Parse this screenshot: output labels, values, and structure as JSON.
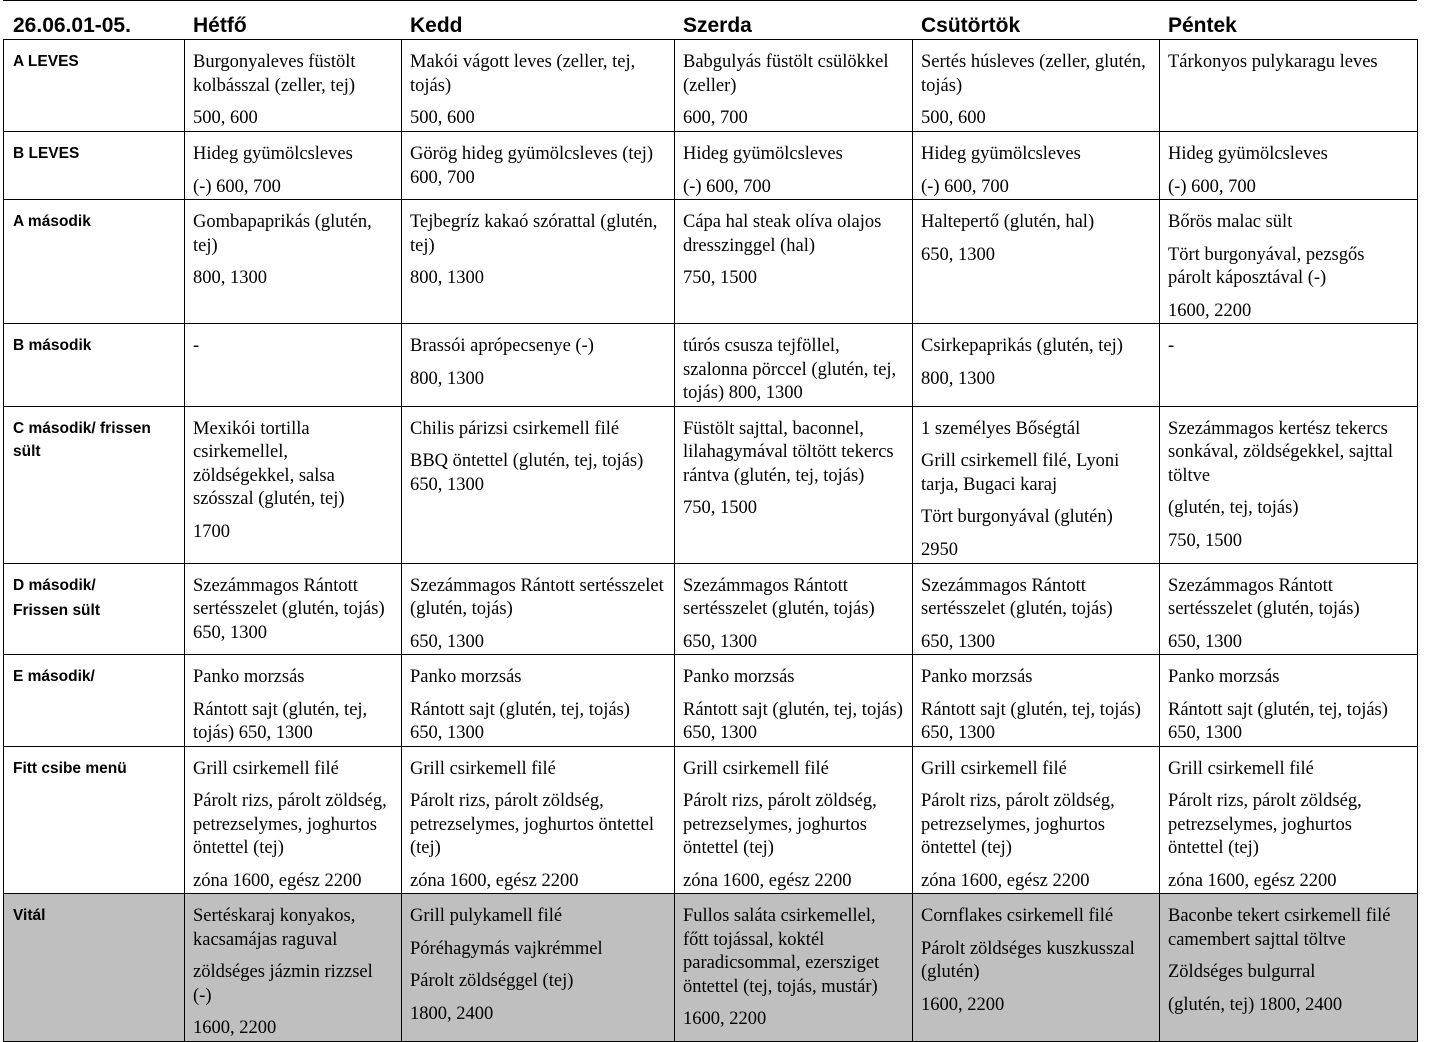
{
  "header": {
    "date": "26.06.01-05.",
    "days": [
      "Hétfő",
      "Kedd",
      "Szerda",
      "Csütörtök",
      "Péntek"
    ]
  },
  "rows": [
    {
      "label": [
        "A LEVES"
      ],
      "cells": [
        [
          "Burgonyaleves füstölt kolbásszal (zeller, tej)",
          "500, 600"
        ],
        [
          "Makói vágott leves (zeller, tej, tojás)",
          " 500, 600"
        ],
        [
          "Babgulyás füstölt csülökkel (zeller)",
          "600, 700"
        ],
        [
          "Sertés húsleves (zeller, glutén, tojás)",
          "500, 600"
        ],
        [
          "Tárkonyos pulykaragu leves"
        ]
      ]
    },
    {
      "label": [
        "B LEVES"
      ],
      "cells": [
        [
          "Hideg gyümölcsleves",
          "(-) 600, 700"
        ],
        [
          "Görög hideg gyümölcsleves (tej) 600, 700"
        ],
        [
          "Hideg gyümölcsleves",
          "(-) 600, 700"
        ],
        [
          "Hideg gyümölcsleves",
          "(-) 600, 700"
        ],
        [
          "Hideg gyümölcsleves",
          "(-) 600, 700"
        ]
      ]
    },
    {
      "label": [
        "A második"
      ],
      "cells": [
        [
          "Gombapaprikás (glutén, tej)",
          "800, 1300"
        ],
        [
          "Tejbegríz kakaó szórattal (glutén, tej)",
          "800, 1300"
        ],
        [
          "Cápa hal steak olíva olajos dresszinggel (hal)",
          "750, 1500"
        ],
        [
          "Haltepertő (glutén, hal)",
          "650, 1300"
        ],
        [
          "Bőrös malac sült",
          "Tört burgonyával, pezsgős párolt káposztával (-)",
          "1600, 2200"
        ]
      ]
    },
    {
      "label": [
        "B második"
      ],
      "cells": [
        [
          "-"
        ],
        [
          "Brassói aprópecsenye (-)",
          "800, 1300"
        ],
        [
          "túrós csusza tejföllel, szalonna pörccel (glutén, tej, tojás) 800, 1300"
        ],
        [
          "Csirkepaprikás (glutén, tej)",
          "800, 1300"
        ],
        [
          "-"
        ]
      ]
    },
    {
      "label": [
        "C második/ frissen sült"
      ],
      "cells": [
        [
          "Mexikói tortilla csirkemellel, zöldségekkel, salsa szósszal (glutén, tej)",
          "1700"
        ],
        [
          "Chilis párizsi csirkemell filé",
          "BBQ öntettel (glutén, tej, tojás) 650, 1300"
        ],
        [
          "Füstölt sajttal, baconnel, lilahagymával töltött tekercs rántva (glutén, tej, tojás)",
          "750, 1500"
        ],
        [
          "1 személyes Bőségtál",
          "Grill csirkemell filé, Lyoni tarja, Bugaci karaj",
          "Tört burgonyával (glutén)",
          "2950"
        ],
        [
          "Szezámmagos kertész tekercs sonkával, zöldségekkel, sajttal töltve",
          "(glutén, tej, tojás)",
          "750, 1500"
        ]
      ]
    },
    {
      "label": [
        "D második/",
        "Frissen sült"
      ],
      "cells": [
        [
          "Szezámmagos Rántott sertésszelet (glutén, tojás) 650, 1300"
        ],
        [
          "Szezámmagos Rántott sertésszelet (glutén, tojás)",
          "650, 1300"
        ],
        [
          "Szezámmagos Rántott sertésszelet (glutén, tojás)",
          "650, 1300"
        ],
        [
          "Szezámmagos Rántott sertésszelet (glutén, tojás)",
          "650, 1300"
        ],
        [
          "Szezámmagos Rántott sertésszelet (glutén, tojás)",
          "650, 1300"
        ]
      ]
    },
    {
      "label": [
        "E második/"
      ],
      "cells": [
        [
          "Panko morzsás",
          "Rántott sajt (glutén, tej, tojás) 650, 1300"
        ],
        [
          "Panko morzsás",
          "Rántott sajt (glutén, tej, tojás) 650, 1300"
        ],
        [
          "Panko morzsás",
          "Rántott sajt (glutén, tej, tojás) 650, 1300"
        ],
        [
          "Panko morzsás",
          "Rántott sajt (glutén, tej, tojás) 650, 1300"
        ],
        [
          "Panko morzsás",
          "Rántott sajt (glutén, tej, tojás) 650, 1300"
        ]
      ]
    },
    {
      "label": [
        "Fitt csibe menü"
      ],
      "cells": [
        [
          "Grill csirkemell filé",
          "Párolt rizs, párolt zöldség, petrezselymes, joghurtos öntettel (tej)",
          "zóna 1600, egész 2200"
        ],
        [
          "Grill csirkemell filé",
          "Párolt rizs, párolt zöldség, petrezselymes, joghurtos öntettel (tej)",
          "zóna 1600, egész 2200"
        ],
        [
          "Grill csirkemell filé",
          "Párolt rizs, párolt zöldség, petrezselymes, joghurtos öntettel (tej)",
          "zóna 1600, egész 2200"
        ],
        [
          "Grill csirkemell filé",
          "Párolt rizs, párolt zöldség, petrezselymes, joghurtos öntettel (tej)",
          "zóna 1600, egész 2200"
        ],
        [
          "Grill csirkemell filé",
          "Párolt rizs, párolt zöldség, petrezselymes, joghurtos öntettel (tej)",
          "zóna 1600, egész 2200"
        ]
      ]
    },
    {
      "label": [
        "Vitál"
      ],
      "cells": [
        [
          "Sertéskaraj konyakos, kacsamájas raguval",
          "zöldséges jázmin rizzsel (-)",
          "1600, 2200"
        ],
        [
          "Grill pulykamell filé",
          "Póréhagymás vajkrémmel",
          "Párolt zöldséggel (tej)",
          "1800, 2400"
        ],
        [
          "Fullos saláta csirkemellel, főtt tojással, koktél paradicsommal, ezersziget öntettel (tej, tojás, mustár)",
          "1600, 2200"
        ],
        [
          "Cornflakes csirkemell filé",
          "Párolt zöldséges kuszkusszal (glutén)",
          "1600, 2200"
        ],
        [
          "Baconbe tekert csirkemell filé camembert sajttal töltve",
          "Zöldséges bulgurral",
          "(glutén, tej) 1800, 2400"
        ]
      ]
    }
  ]
}
